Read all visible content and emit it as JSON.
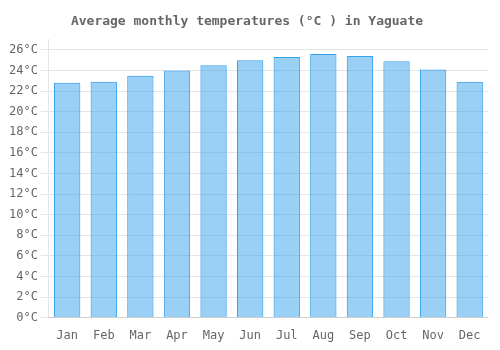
{
  "chart_data": {
    "type": "bar",
    "title": "Average monthly temperatures (°C ) in Yaguate",
    "categories": [
      "Jan",
      "Feb",
      "Mar",
      "Apr",
      "May",
      "Jun",
      "Jul",
      "Aug",
      "Sep",
      "Oct",
      "Nov",
      "Dec"
    ],
    "values": [
      22.8,
      22.9,
      23.5,
      24.0,
      24.5,
      25.0,
      25.3,
      25.6,
      25.4,
      24.9,
      24.1,
      22.9
    ],
    "ylim": [
      0,
      27
    ],
    "yticks": [
      {
        "value": 0,
        "label": "0°C"
      },
      {
        "value": 2,
        "label": "2°C"
      },
      {
        "value": 4,
        "label": "4°C"
      },
      {
        "value": 6,
        "label": "6°C"
      },
      {
        "value": 8,
        "label": "8°C"
      },
      {
        "value": 10,
        "label": "10°C"
      },
      {
        "value": 12,
        "label": "12°C"
      },
      {
        "value": 14,
        "label": "14°C"
      },
      {
        "value": 16,
        "label": "16°C"
      },
      {
        "value": 18,
        "label": "18°C"
      },
      {
        "value": 20,
        "label": "20°C"
      },
      {
        "value": 22,
        "label": "22°C"
      },
      {
        "value": 24,
        "label": "24°C"
      },
      {
        "value": 26,
        "label": "26°C"
      }
    ],
    "grid": true
  }
}
